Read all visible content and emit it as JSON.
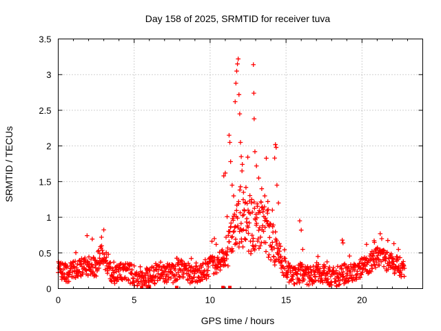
{
  "chart_data": {
    "type": "scatter",
    "title": "Day 158 of 2025, SRMTID for receiver tuva",
    "xlabel": "GPS time / hours",
    "ylabel": "SRMTID / TECUs",
    "xlim": [
      0,
      24
    ],
    "ylim": [
      0,
      3.5
    ],
    "xticks": [
      0,
      5,
      10,
      15,
      20
    ],
    "yticks": [
      0,
      0.5,
      1,
      1.5,
      2,
      2.5,
      3,
      3.5
    ],
    "xtick_labels": [
      "0",
      "5",
      "10",
      "15",
      "20"
    ],
    "ytick_labels": [
      "0",
      "0.5",
      "1",
      "1.5",
      "2",
      "2.5",
      "3",
      "3.5"
    ],
    "grid": true,
    "marker": "plus",
    "series": [
      {
        "name": "SRMTID",
        "color": "#ff0000",
        "baseline_profile": [
          [
            0.0,
            0.25
          ],
          [
            0.5,
            0.22
          ],
          [
            1.0,
            0.25
          ],
          [
            1.5,
            0.3
          ],
          [
            2.0,
            0.32
          ],
          [
            2.5,
            0.3
          ],
          [
            2.8,
            0.5
          ],
          [
            3.2,
            0.35
          ],
          [
            3.5,
            0.2
          ],
          [
            4.0,
            0.22
          ],
          [
            4.5,
            0.24
          ],
          [
            5.0,
            0.18
          ],
          [
            5.5,
            0.17
          ],
          [
            6.0,
            0.15
          ],
          [
            6.5,
            0.2
          ],
          [
            7.0,
            0.22
          ],
          [
            7.5,
            0.2
          ],
          [
            8.0,
            0.28
          ],
          [
            8.5,
            0.22
          ],
          [
            9.0,
            0.2
          ],
          [
            9.5,
            0.25
          ],
          [
            10.0,
            0.3
          ],
          [
            10.5,
            0.35
          ],
          [
            11.0,
            0.45
          ],
          [
            11.5,
            0.7
          ],
          [
            12.0,
            1.0
          ],
          [
            12.5,
            0.9
          ],
          [
            13.0,
            0.85
          ],
          [
            13.5,
            0.9
          ],
          [
            14.0,
            0.7
          ],
          [
            14.5,
            0.45
          ],
          [
            15.0,
            0.25
          ],
          [
            15.5,
            0.2
          ],
          [
            16.0,
            0.22
          ],
          [
            16.5,
            0.18
          ],
          [
            17.0,
            0.2
          ],
          [
            17.5,
            0.22
          ],
          [
            18.0,
            0.15
          ],
          [
            18.5,
            0.18
          ],
          [
            19.0,
            0.22
          ],
          [
            19.5,
            0.25
          ],
          [
            20.0,
            0.3
          ],
          [
            20.5,
            0.35
          ],
          [
            21.0,
            0.45
          ],
          [
            21.5,
            0.4
          ],
          [
            22.0,
            0.35
          ],
          [
            22.5,
            0.3
          ],
          [
            22.8,
            0.28
          ]
        ],
        "peaks": [
          [
            2.85,
            0.72
          ],
          [
            10.4,
            0.62
          ],
          [
            10.9,
            1.58
          ],
          [
            11.0,
            1.62
          ],
          [
            11.05,
            0.72
          ],
          [
            11.25,
            2.15
          ],
          [
            11.3,
            2.05
          ],
          [
            11.35,
            1.78
          ],
          [
            11.45,
            1.45
          ],
          [
            11.55,
            1.3
          ],
          [
            11.65,
            2.62
          ],
          [
            11.7,
            2.88
          ],
          [
            11.75,
            3.05
          ],
          [
            11.8,
            3.15
          ],
          [
            11.85,
            3.22
          ],
          [
            11.9,
            2.72
          ],
          [
            11.95,
            2.45
          ],
          [
            12.0,
            2.05
          ],
          [
            12.05,
            1.85
          ],
          [
            12.1,
            1.65
          ],
          [
            12.2,
            1.35
          ],
          [
            12.3,
            1.2
          ],
          [
            12.5,
            1.1
          ],
          [
            12.85,
            3.14
          ],
          [
            12.88,
            2.74
          ],
          [
            12.9,
            2.38
          ],
          [
            12.95,
            1.92
          ],
          [
            13.05,
            1.72
          ],
          [
            13.2,
            1.55
          ],
          [
            13.4,
            1.4
          ],
          [
            13.6,
            1.3
          ],
          [
            13.8,
            1.22
          ],
          [
            14.1,
            1.1
          ],
          [
            14.25,
            1.83
          ],
          [
            14.3,
            2.02
          ],
          [
            14.35,
            1.98
          ],
          [
            14.4,
            1.45
          ],
          [
            14.5,
            1.2
          ],
          [
            15.9,
            0.95
          ],
          [
            16.0,
            0.82
          ],
          [
            16.1,
            0.55
          ],
          [
            17.1,
            0.45
          ],
          [
            18.7,
            0.68
          ],
          [
            18.75,
            0.64
          ],
          [
            20.3,
            0.62
          ],
          [
            20.8,
            0.67
          ],
          [
            21.2,
            0.77
          ],
          [
            21.3,
            0.7
          ],
          [
            22.1,
            0.63
          ],
          [
            22.4,
            0.55
          ]
        ],
        "near_zero_markers_x": [
          5.5,
          5.9,
          6.0,
          7.8,
          10.85,
          11.3
        ]
      }
    ]
  }
}
